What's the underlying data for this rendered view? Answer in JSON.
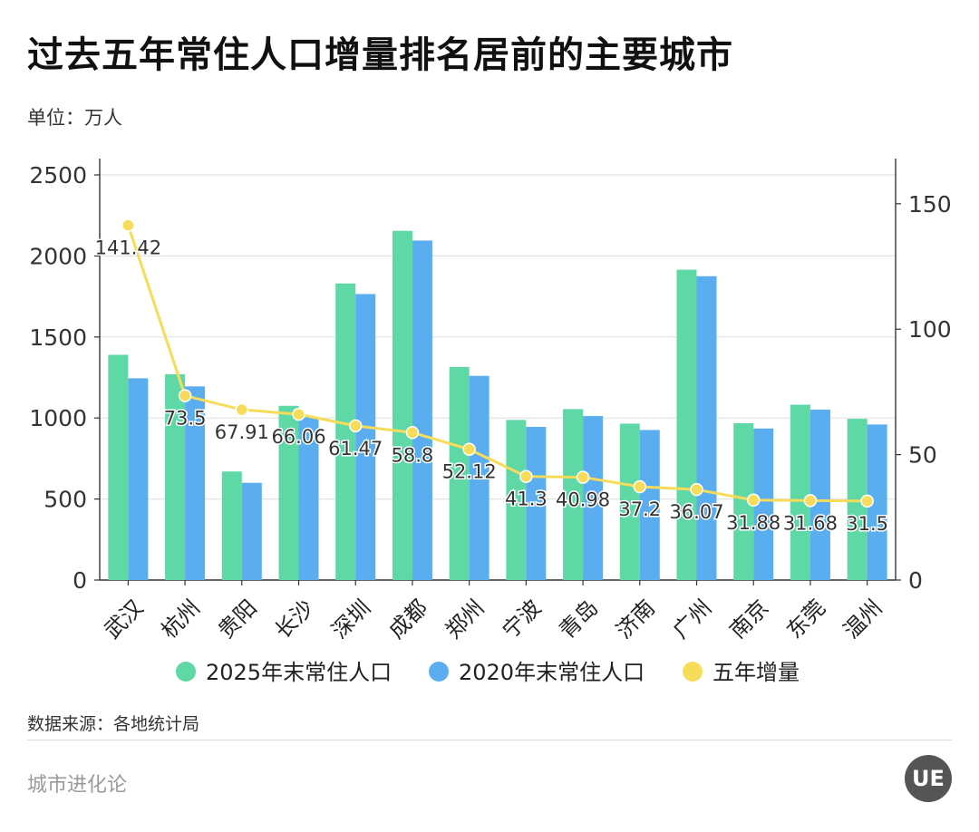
{
  "header": {
    "title": "过去五年常住人口增量排名居前的主要城市",
    "unit": "单位：万人"
  },
  "footer": {
    "source": "数据来源：各地统计局",
    "brand": "城市进化论",
    "logo_text": "UE"
  },
  "colors": {
    "series_2025": "#5ed8a5",
    "series_2020": "#5aaeef",
    "series_increase": "#f7dc5a",
    "grid": "#e3e3e3",
    "axis": "#333333"
  },
  "chart_data": {
    "type": "bar",
    "categories": [
      "武汉",
      "杭州",
      "贵阳",
      "长沙",
      "深圳",
      "成都",
      "郑州",
      "宁波",
      "青岛",
      "济南",
      "广州",
      "南京",
      "东莞",
      "温州"
    ],
    "series": [
      {
        "name": "2025年末常住人口",
        "type": "bar",
        "axis": "left",
        "values": [
          1390,
          1270,
          670,
          1075,
          1830,
          2155,
          1315,
          988,
          1055,
          965,
          1915,
          968,
          1082,
          995
        ]
      },
      {
        "name": "2020年末常住人口",
        "type": "bar",
        "axis": "left",
        "values": [
          1245,
          1195,
          600,
          1005,
          1765,
          2095,
          1260,
          945,
          1012,
          926,
          1875,
          935,
          1052,
          960
        ]
      },
      {
        "name": "五年增量",
        "type": "line",
        "axis": "right",
        "values": [
          141.42,
          73.5,
          67.91,
          66.06,
          61.47,
          58.8,
          52.12,
          41.3,
          40.98,
          37.2,
          36.07,
          31.88,
          31.68,
          31.5
        ],
        "labels": [
          "141.42",
          "73.5",
          "67.91",
          "66.06",
          "61.47",
          "58.8",
          "52.12",
          "41.3",
          "40.98",
          "37.2",
          "36.07",
          "31.88",
          "31.68",
          "31.5"
        ]
      }
    ],
    "y_left": {
      "range": [
        0,
        2500
      ],
      "ticks": [
        0,
        500,
        1000,
        1500,
        2000,
        2500
      ],
      "tick_labels": [
        "0",
        "500",
        "1000",
        "1500",
        "2000",
        "2500"
      ]
    },
    "y_right": {
      "range": [
        0,
        150
      ],
      "ticks": [
        0,
        50,
        100,
        150
      ],
      "tick_labels": [
        "0",
        "50",
        "100",
        "150"
      ]
    },
    "grid": true,
    "legend_position": "bottom"
  }
}
